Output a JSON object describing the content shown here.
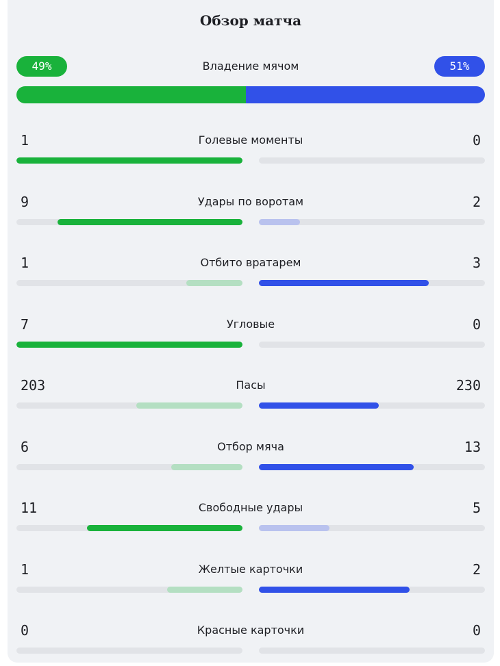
{
  "title": "Обзор матча",
  "possession": {
    "label": "Владение мячом",
    "home_text": "49%",
    "away_text": "51%",
    "home_fraction": 0.49,
    "away_fraction": 0.51
  },
  "colors": {
    "home_strong": "#19b23b",
    "home_weak": "#b4dfc2",
    "away_strong": "#3151e8",
    "away_weak": "#b9c2ee",
    "track": "#e1e3e7"
  },
  "stats": [
    {
      "label": "Голевые моменты",
      "home": "1",
      "away": "0"
    },
    {
      "label": "Удары по воротам",
      "home": "9",
      "away": "2"
    },
    {
      "label": "Отбито вратарем",
      "home": "1",
      "away": "3"
    },
    {
      "label": "Угловые",
      "home": "7",
      "away": "0"
    },
    {
      "label": "Пасы",
      "home": "203",
      "away": "230"
    },
    {
      "label": "Отбор мяча",
      "home": "6",
      "away": "13"
    },
    {
      "label": "Свободные удары",
      "home": "11",
      "away": "5"
    },
    {
      "label": "Желтые карточки",
      "home": "1",
      "away": "2"
    },
    {
      "label": "Красные карточки",
      "home": "0",
      "away": "0"
    }
  ]
}
